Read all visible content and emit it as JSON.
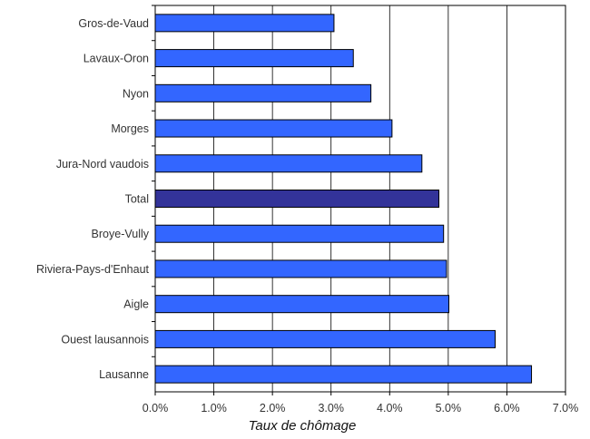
{
  "chart_data": {
    "type": "bar",
    "orientation": "horizontal",
    "categories": [
      "Gros-de-Vaud",
      "Lavaux-Oron",
      "Nyon",
      "Morges",
      "Jura-Nord vaudois",
      "Total",
      "Broye-Vully",
      "Riviera-Pays-d'Enhaut",
      "Aigle",
      "Ouest lausannois",
      "Lausanne"
    ],
    "values": [
      3.05,
      3.38,
      3.68,
      4.04,
      4.55,
      4.84,
      4.92,
      4.97,
      5.01,
      5.8,
      6.42
    ],
    "highlight_category": "Total",
    "xlabel": "Taux de chômage",
    "ylabel": "",
    "xlim": [
      0,
      7
    ],
    "xticks": [
      "0.0%",
      "1.0%",
      "2.0%",
      "3.0%",
      "4.0%",
      "5.0%",
      "6.0%",
      "7.0%"
    ],
    "grid": "vertical",
    "colors": {
      "bar": "#3366ff",
      "highlight": "#333399",
      "bar_edge": "#000000",
      "grid": "#000000"
    }
  }
}
